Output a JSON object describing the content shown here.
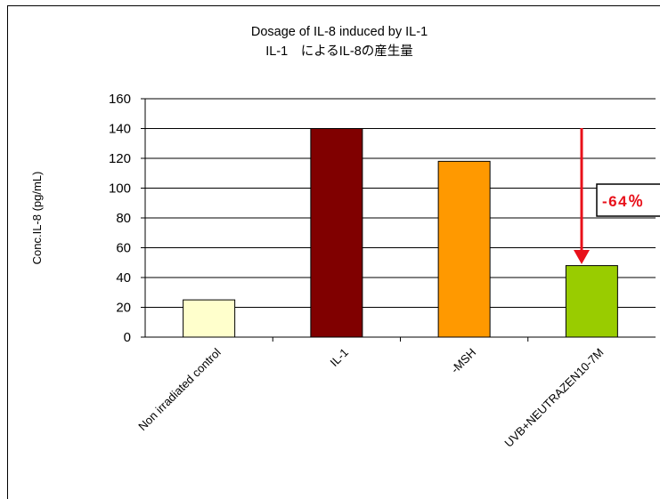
{
  "chart_data": {
    "type": "bar",
    "title": "Dosage of IL-8 induced by IL-1",
    "subtitle": "IL-1　によるIL-8の産生量",
    "ylabel": "Conc.IL-8 (pg/mL)",
    "xlabel": "",
    "categories": [
      "Non irradiated control",
      "IL-1",
      "-MSH",
      "UVB+NEUTRAZEN10-7M"
    ],
    "values": [
      25,
      140,
      118,
      48
    ],
    "colors": [
      "#ffffcc",
      "#800000",
      "#ff9900",
      "#99cc00"
    ],
    "ylim": [
      0,
      160
    ],
    "yticks": [
      0,
      20,
      40,
      60,
      80,
      100,
      120,
      140,
      160
    ],
    "grid": true,
    "legend": "none",
    "annotation": {
      "text": "-64％",
      "color": "#e8101a"
    }
  }
}
